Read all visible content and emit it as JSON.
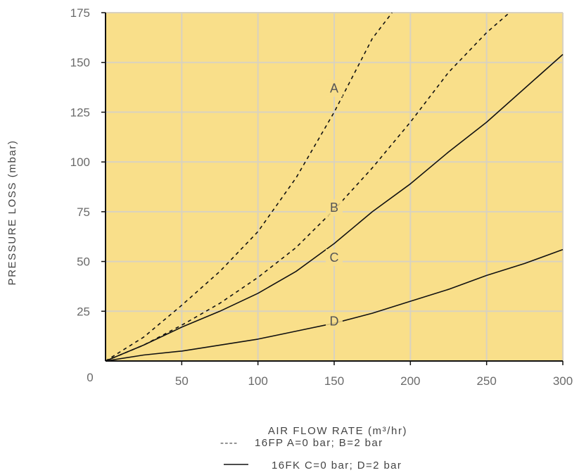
{
  "chart_data": {
    "type": "line",
    "xlabel": "AIR FLOW RATE (m³/hr)",
    "ylabel": "PRESSURE LOSS (mbar)",
    "xlim": [
      0,
      300
    ],
    "ylim": [
      0,
      175
    ],
    "x_ticks": [
      "50",
      "100",
      "150",
      "200",
      "250",
      "300"
    ],
    "y_ticks": [
      "25",
      "50",
      "75",
      "100",
      "125",
      "150",
      "175"
    ],
    "origin_label": "0",
    "grid": true,
    "colors": {
      "plot_background": "#f9df8a",
      "grid": "#d9d2c0",
      "curve": "#111111",
      "axis": "#111111"
    },
    "series": [
      {
        "name": "A",
        "style": "dashed",
        "label_at": [
          150,
          137
        ],
        "points": [
          [
            0,
            0
          ],
          [
            25,
            12
          ],
          [
            50,
            28
          ],
          [
            75,
            45
          ],
          [
            100,
            65
          ],
          [
            125,
            92
          ],
          [
            150,
            125
          ],
          [
            175,
            162
          ],
          [
            188,
            175
          ]
        ]
      },
      {
        "name": "B",
        "style": "dashed",
        "label_at": [
          150,
          77
        ],
        "points": [
          [
            0,
            0
          ],
          [
            25,
            8
          ],
          [
            50,
            18
          ],
          [
            75,
            29
          ],
          [
            100,
            42
          ],
          [
            125,
            57
          ],
          [
            150,
            76
          ],
          [
            175,
            97
          ],
          [
            200,
            120
          ],
          [
            225,
            145
          ],
          [
            250,
            165
          ],
          [
            265,
            175
          ]
        ]
      },
      {
        "name": "C",
        "style": "solid",
        "label_at": [
          150,
          52
        ],
        "points": [
          [
            0,
            0
          ],
          [
            25,
            8
          ],
          [
            50,
            17
          ],
          [
            75,
            25
          ],
          [
            100,
            34
          ],
          [
            125,
            45
          ],
          [
            150,
            59
          ],
          [
            175,
            75
          ],
          [
            200,
            89
          ],
          [
            225,
            105
          ],
          [
            250,
            120
          ],
          [
            275,
            137
          ],
          [
            300,
            154
          ]
        ]
      },
      {
        "name": "D",
        "style": "solid",
        "label_at": [
          150,
          20
        ],
        "points": [
          [
            0,
            0
          ],
          [
            25,
            3
          ],
          [
            50,
            5
          ],
          [
            75,
            8
          ],
          [
            100,
            11
          ],
          [
            125,
            15
          ],
          [
            150,
            19
          ],
          [
            175,
            24
          ],
          [
            200,
            30
          ],
          [
            225,
            36
          ],
          [
            250,
            43
          ],
          [
            275,
            49
          ],
          [
            300,
            56
          ]
        ]
      }
    ],
    "legend": [
      {
        "symbol": "----",
        "text": "16FP A=0 bar; B=2 bar"
      },
      {
        "symbol": "——",
        "text": "16FK C=0 bar; D=2 bar"
      }
    ]
  }
}
